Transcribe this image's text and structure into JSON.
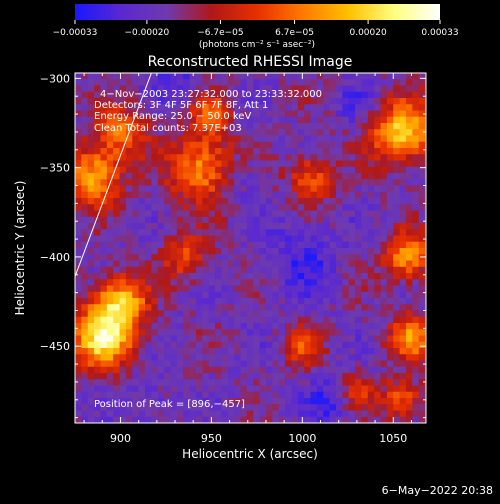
{
  "chart_data": {
    "type": "heatmap",
    "title": "Reconstructed RHESSI Image",
    "xlabel": "Heliocentric X (arcsec)",
    "ylabel": "Heliocentric Y (arcsec)",
    "xlim": [
      875,
      1068
    ],
    "ylim": [
      -493,
      -297
    ],
    "x_ticks": [
      900,
      950,
      1000,
      1050
    ],
    "x_tick_labels": [
      "900",
      "950",
      "1000",
      "1050"
    ],
    "y_ticks": [
      -300,
      -350,
      -400,
      -450
    ],
    "y_tick_labels": [
      "−300",
      "−350",
      "−400",
      "−450"
    ],
    "colorbar": {
      "range": [
        -0.00033,
        0.00033
      ],
      "ticks": [
        -0.00033,
        -0.0002,
        -6.7e-05,
        6.7e-05,
        0.0002,
        0.00033
      ],
      "tick_labels": [
        "−0.00033",
        "−0.00020",
        "−6.7e−05",
        "6.7e−05",
        "0.00020",
        "0.00033"
      ],
      "units": "(photons cm⁻² s⁻¹ asec⁻²)",
      "colors": [
        "#1818ff",
        "#5a28d0",
        "#6e3ab0",
        "#b01818",
        "#e83000",
        "#ff7a00",
        "#ffc000",
        "#ffff80",
        "#ffffff"
      ]
    },
    "limb_line": {
      "points": [
        [
          875,
          -411
        ],
        [
          917,
          -297
        ]
      ]
    },
    "annotations": {
      "time": "4−Nov−2003 23:27:32.000 to 23:33:32.000",
      "detectors": "Detectors: 3F 4F 5F 6F 7F 8F, Att 1",
      "energy": "Energy Range: 25.0 − 50.0 keV",
      "clean": "Clean    Total counts: 7.37E+03",
      "peak": "Position of Peak = [896,−457]"
    },
    "bright_regions": [
      {
        "x": 890,
        "y": -445,
        "sigma": 12,
        "amp": 1.0
      },
      {
        "x": 900,
        "y": -425,
        "sigma": 10,
        "amp": 0.85
      },
      {
        "x": 885,
        "y": -355,
        "sigma": 11,
        "amp": 0.8
      },
      {
        "x": 900,
        "y": -330,
        "sigma": 10,
        "amp": 0.6
      },
      {
        "x": 945,
        "y": -350,
        "sigma": 13,
        "amp": 0.75
      },
      {
        "x": 935,
        "y": -400,
        "sigma": 9,
        "amp": 0.45
      },
      {
        "x": 950,
        "y": -320,
        "sigma": 8,
        "amp": 0.5
      },
      {
        "x": 1005,
        "y": -355,
        "sigma": 9,
        "amp": 0.55
      },
      {
        "x": 1055,
        "y": -330,
        "sigma": 12,
        "amp": 0.9
      },
      {
        "x": 1058,
        "y": -400,
        "sigma": 9,
        "amp": 0.75
      },
      {
        "x": 1060,
        "y": -445,
        "sigma": 9,
        "amp": 0.65
      },
      {
        "x": 1055,
        "y": -480,
        "sigma": 8,
        "amp": 0.55
      },
      {
        "x": 1000,
        "y": -450,
        "sigma": 7,
        "amp": 0.45
      },
      {
        "x": 1030,
        "y": -475,
        "sigma": 7,
        "amp": 0.4
      }
    ],
    "dim_regions": [
      {
        "x": 1000,
        "y": -400,
        "sigma": 14,
        "amp": 0.7
      },
      {
        "x": 1015,
        "y": -480,
        "sigma": 8,
        "amp": 0.8
      },
      {
        "x": 965,
        "y": -355,
        "sigma": 10,
        "amp": 0.6
      },
      {
        "x": 930,
        "y": -300,
        "sigma": 9,
        "amp": 0.6
      },
      {
        "x": 1030,
        "y": -315,
        "sigma": 8,
        "amp": 0.5
      },
      {
        "x": 915,
        "y": -480,
        "sigma": 9,
        "amp": 0.5
      }
    ]
  },
  "footer": {
    "date": "6−May−2022 20:38"
  }
}
